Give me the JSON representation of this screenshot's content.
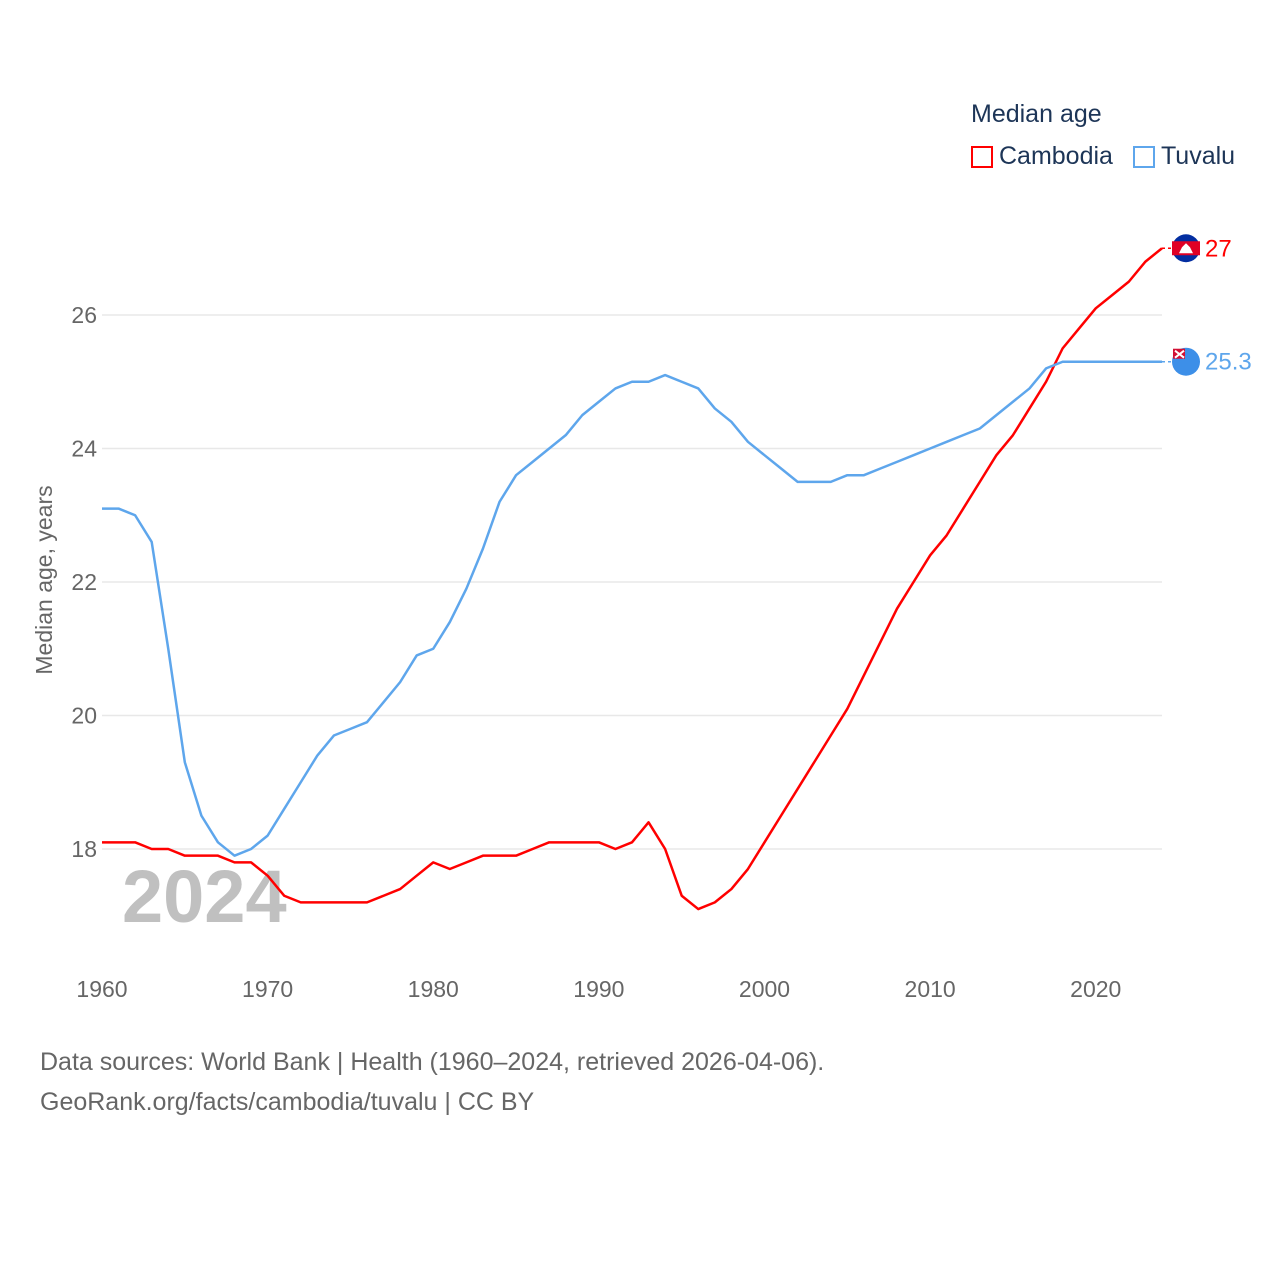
{
  "chart_data": {
    "type": "line",
    "title": "Median age",
    "xlabel": "",
    "ylabel": "Median age, years",
    "xlim": [
      1960,
      2024
    ],
    "ylim": [
      16.5,
      27.5
    ],
    "yticks": [
      18,
      20,
      22,
      24,
      26
    ],
    "xticks": [
      1960,
      1970,
      1980,
      1990,
      2000,
      2010,
      2020
    ],
    "grid": true,
    "legend_placement": "top-right",
    "watermark_year": "2024",
    "x": [
      1960,
      1961,
      1962,
      1963,
      1964,
      1965,
      1966,
      1967,
      1968,
      1969,
      1970,
      1971,
      1972,
      1973,
      1974,
      1975,
      1976,
      1977,
      1978,
      1979,
      1980,
      1981,
      1982,
      1983,
      1984,
      1985,
      1986,
      1987,
      1988,
      1989,
      1990,
      1991,
      1992,
      1993,
      1994,
      1995,
      1996,
      1997,
      1998,
      1999,
      2000,
      2001,
      2002,
      2003,
      2004,
      2005,
      2006,
      2007,
      2008,
      2009,
      2010,
      2011,
      2012,
      2013,
      2014,
      2015,
      2016,
      2017,
      2018,
      2019,
      2020,
      2021,
      2022,
      2023,
      2024
    ],
    "series": [
      {
        "name": "Cambodia",
        "color": "#ff0000",
        "end_label": "27",
        "values": [
          18.1,
          18.1,
          18.1,
          18.0,
          18.0,
          17.9,
          17.9,
          17.9,
          17.8,
          17.8,
          17.6,
          17.3,
          17.2,
          17.2,
          17.2,
          17.2,
          17.2,
          17.3,
          17.4,
          17.6,
          17.8,
          17.7,
          17.8,
          17.9,
          17.9,
          17.9,
          18.0,
          18.1,
          18.1,
          18.1,
          18.1,
          18.0,
          18.1,
          18.4,
          18.0,
          17.3,
          17.1,
          17.2,
          17.4,
          17.7,
          18.1,
          18.5,
          18.9,
          19.3,
          19.7,
          20.1,
          20.6,
          21.1,
          21.6,
          22.0,
          22.4,
          22.7,
          23.1,
          23.5,
          23.9,
          24.2,
          24.6,
          25.0,
          25.5,
          25.8,
          26.1,
          26.3,
          26.5,
          26.8,
          27.0
        ]
      },
      {
        "name": "Tuvalu",
        "color": "#5ea6ec",
        "end_label": "25.3",
        "values": [
          23.1,
          23.1,
          23.0,
          22.6,
          21.0,
          19.3,
          18.5,
          18.1,
          17.9,
          18.0,
          18.2,
          18.6,
          19.0,
          19.4,
          19.7,
          19.8,
          19.9,
          20.2,
          20.5,
          20.9,
          21.0,
          21.4,
          21.9,
          22.5,
          23.2,
          23.6,
          23.8,
          24.0,
          24.2,
          24.5,
          24.7,
          24.9,
          25.0,
          25.0,
          25.1,
          25.0,
          24.9,
          24.6,
          24.4,
          24.1,
          23.9,
          23.7,
          23.5,
          23.5,
          23.5,
          23.6,
          23.6,
          23.7,
          23.8,
          23.9,
          24.0,
          24.1,
          24.2,
          24.3,
          24.5,
          24.7,
          24.9,
          25.2,
          25.3,
          25.3,
          25.3,
          25.3,
          25.3,
          25.3,
          25.3
        ]
      }
    ]
  },
  "footer": {
    "line1": "Data sources: World Bank | Health (1960–2024, retrieved 2026-04-06).",
    "line2": "GeoRank.org/facts/cambodia/tuvalu | CC BY"
  }
}
